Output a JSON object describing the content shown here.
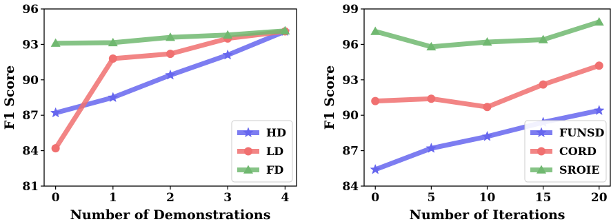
{
  "chart_data": [
    {
      "type": "line",
      "xlabel": "Number of Demonstrations",
      "ylabel": "F1 Score",
      "x": [
        0,
        1,
        2,
        3,
        4
      ],
      "xticks": [
        "0",
        "1",
        "2",
        "3",
        "4"
      ],
      "yticks": [
        "81",
        "84",
        "87",
        "90",
        "93",
        "96"
      ],
      "xlim": [
        -0.2,
        4.2
      ],
      "ylim": [
        81,
        96
      ],
      "legend": "bottom-right",
      "series": [
        {
          "name": "HD",
          "color": "#6666ee",
          "marker": "star",
          "values": [
            87.2,
            88.5,
            90.4,
            92.1,
            94.1
          ]
        },
        {
          "name": "LD",
          "color": "#f07070",
          "marker": "circle",
          "values": [
            84.2,
            91.8,
            92.2,
            93.5,
            94.1
          ]
        },
        {
          "name": "FD",
          "color": "#70b870",
          "marker": "triangle",
          "values": [
            93.1,
            93.15,
            93.6,
            93.8,
            94.15
          ]
        }
      ]
    },
    {
      "type": "line",
      "xlabel": "Number of Iterations",
      "ylabel": "F1 Score",
      "x": [
        0,
        5,
        10,
        15,
        20
      ],
      "xticks": [
        "0",
        "5",
        "10",
        "15",
        "20"
      ],
      "yticks": [
        "84",
        "87",
        "90",
        "93",
        "96",
        "99"
      ],
      "xlim": [
        -1,
        21
      ],
      "ylim": [
        84,
        99
      ],
      "legend": "bottom-right",
      "series": [
        {
          "name": "FUNSD",
          "color": "#6666ee",
          "marker": "star",
          "values": [
            85.4,
            87.2,
            88.2,
            89.4,
            90.4
          ]
        },
        {
          "name": "CORD",
          "color": "#f07070",
          "marker": "circle",
          "values": [
            91.2,
            91.4,
            90.7,
            92.6,
            94.2
          ]
        },
        {
          "name": "SROIE",
          "color": "#70b870",
          "marker": "triangle",
          "values": [
            97.1,
            95.8,
            96.2,
            96.4,
            97.9
          ]
        }
      ]
    }
  ]
}
